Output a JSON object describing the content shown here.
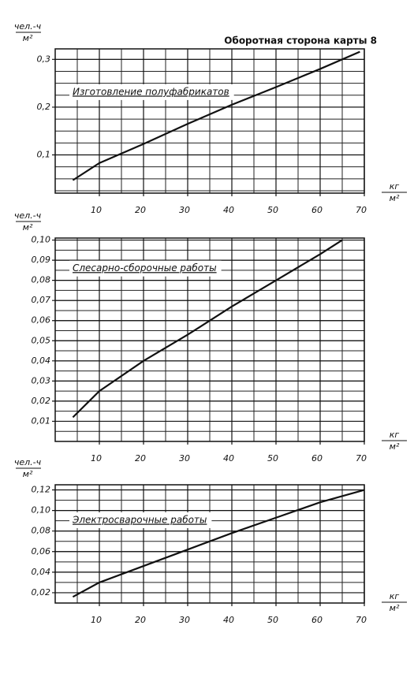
{
  "header": "Оборотная сторона карты 8",
  "chart_data": [
    {
      "type": "line",
      "ylabel": [
        "чел.-ч",
        "м²"
      ],
      "xlabel": [
        "кг",
        "м²"
      ],
      "x": [
        4,
        10,
        20,
        30,
        40,
        50,
        60,
        69
      ],
      "series": [
        {
          "name": "Изготовление полуфабрикатов",
          "color": "#111111",
          "values": [
            0.047,
            0.083,
            0.123,
            0.165,
            0.205,
            0.242,
            0.28,
            0.316
          ]
        }
      ],
      "xlim": [
        0,
        70
      ],
      "xticks": [
        10,
        20,
        30,
        40,
        50,
        60,
        70
      ],
      "ylim": [
        0.02,
        0.322
      ],
      "yticks": [
        {
          "value": 0.1,
          "label": "0,1"
        },
        {
          "value": 0.2,
          "label": "0,2"
        },
        {
          "value": 0.3,
          "label": "0,3"
        }
      ],
      "grid": true
    },
    {
      "type": "line",
      "ylabel": [
        "чел.-ч",
        "м²"
      ],
      "xlabel": [
        "кг",
        "м²"
      ],
      "x": [
        4,
        10,
        20,
        30,
        40,
        50,
        60,
        65
      ],
      "series": [
        {
          "name": "Слесарно-сборочные работы",
          "color": "#111111",
          "values": [
            0.012,
            0.025,
            0.04,
            0.053,
            0.067,
            0.08,
            0.093,
            0.1
          ]
        }
      ],
      "xlim": [
        0,
        70
      ],
      "xticks": [
        10,
        20,
        30,
        40,
        50,
        60,
        70
      ],
      "ylim": [
        0,
        0.101
      ],
      "yticks": [
        {
          "value": 0.01,
          "label": "0,01"
        },
        {
          "value": 0.02,
          "label": "0,02"
        },
        {
          "value": 0.03,
          "label": "0,03"
        },
        {
          "value": 0.04,
          "label": "0,04"
        },
        {
          "value": 0.05,
          "label": "0,05"
        },
        {
          "value": 0.06,
          "label": "0,06"
        },
        {
          "value": 0.07,
          "label": "0,07"
        },
        {
          "value": 0.08,
          "label": "0,08"
        },
        {
          "value": 0.09,
          "label": "0,09"
        },
        {
          "value": 0.1,
          "label": "0,10"
        }
      ],
      "grid": true
    },
    {
      "type": "line",
      "ylabel": [
        "чел.-ч",
        "м²"
      ],
      "xlabel": [
        "кг",
        "м²"
      ],
      "x": [
        4,
        10,
        20,
        30,
        40,
        50,
        60,
        70
      ],
      "series": [
        {
          "name": "Электросварочные работы",
          "color": "#111111",
          "values": [
            0.016,
            0.03,
            0.046,
            0.062,
            0.078,
            0.093,
            0.108,
            0.12
          ]
        }
      ],
      "xlim": [
        0,
        70
      ],
      "xticks": [
        10,
        20,
        30,
        40,
        50,
        60,
        70
      ],
      "ylim": [
        0.01,
        0.125
      ],
      "yticks": [
        {
          "value": 0.02,
          "label": "0,02"
        },
        {
          "value": 0.04,
          "label": "0,04"
        },
        {
          "value": 0.06,
          "label": "0,06"
        },
        {
          "value": 0.08,
          "label": "0,08"
        },
        {
          "value": 0.1,
          "label": "0,10"
        },
        {
          "value": 0.12,
          "label": "0,12"
        }
      ],
      "grid": true
    }
  ]
}
